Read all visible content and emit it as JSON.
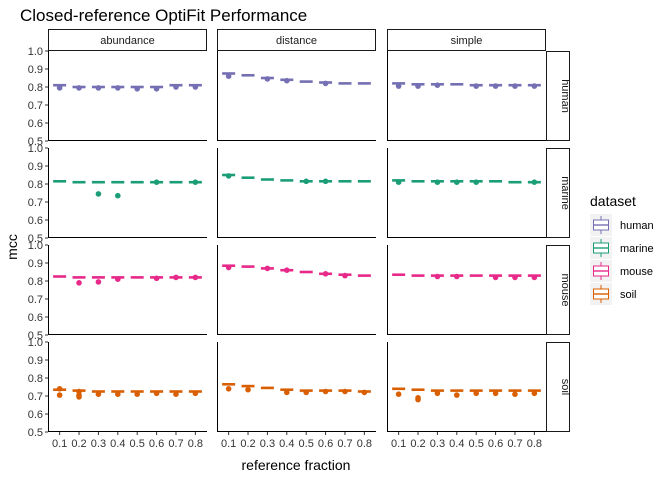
{
  "chart_data": {
    "type": "boxplot",
    "title": "Closed-reference OptiFit Performance",
    "xlabel": "reference fraction",
    "ylabel": "mcc",
    "x": [
      0.1,
      0.2,
      0.3,
      0.4,
      0.5,
      0.6,
      0.7,
      0.8
    ],
    "x_tick_labels": [
      "0.1",
      "0.2",
      "0.3",
      "0.4",
      "0.5",
      "0.6",
      "0.7",
      "0.8"
    ],
    "ylim": [
      0.5,
      1.0
    ],
    "y_ticks": [
      0.5,
      0.6,
      0.7,
      0.8,
      0.9,
      1.0
    ],
    "y_tick_labels": [
      "0.5",
      "0.6",
      "0.7",
      "0.8",
      "0.9",
      "1.0"
    ],
    "grid": false,
    "facet_columns": [
      "abundance",
      "distance",
      "simple"
    ],
    "facet_rows": [
      "human",
      "marine",
      "mouse",
      "soil"
    ],
    "legend": {
      "title": "dataset",
      "position": "right",
      "entries": [
        "human",
        "marine",
        "mouse",
        "soil"
      ]
    },
    "colors": {
      "human": "#7570b3",
      "marine": "#1b9e77",
      "mouse": "#e7298a",
      "soil": "#d95f02"
    },
    "panels": [
      {
        "row": "human",
        "col": "abundance",
        "medians": [
          0.81,
          0.8,
          0.8,
          0.8,
          0.8,
          0.8,
          0.81,
          0.81
        ],
        "outliers": [
          [
            0.1,
            0.795
          ],
          [
            0.2,
            0.795
          ],
          [
            0.3,
            0.795
          ],
          [
            0.4,
            0.795
          ],
          [
            0.5,
            0.79
          ],
          [
            0.6,
            0.79
          ],
          [
            0.7,
            0.8
          ],
          [
            0.8,
            0.8
          ]
        ]
      },
      {
        "row": "human",
        "col": "distance",
        "medians": [
          0.875,
          0.865,
          0.85,
          0.84,
          0.83,
          0.825,
          0.82,
          0.82
        ],
        "outliers": [
          [
            0.1,
            0.86
          ],
          [
            0.3,
            0.845
          ],
          [
            0.4,
            0.835
          ],
          [
            0.6,
            0.82
          ]
        ]
      },
      {
        "row": "human",
        "col": "simple",
        "medians": [
          0.82,
          0.815,
          0.815,
          0.815,
          0.81,
          0.81,
          0.81,
          0.81
        ],
        "outliers": [
          [
            0.1,
            0.805
          ],
          [
            0.2,
            0.805
          ],
          [
            0.3,
            0.81
          ],
          [
            0.5,
            0.805
          ],
          [
            0.6,
            0.805
          ],
          [
            0.7,
            0.805
          ],
          [
            0.8,
            0.805
          ]
        ]
      },
      {
        "row": "marine",
        "col": "abundance",
        "medians": [
          0.815,
          0.81,
          0.81,
          0.81,
          0.81,
          0.81,
          0.81,
          0.81
        ],
        "outliers": [
          [
            0.3,
            0.745
          ],
          [
            0.4,
            0.735
          ],
          [
            0.6,
            0.81
          ],
          [
            0.8,
            0.81
          ]
        ]
      },
      {
        "row": "marine",
        "col": "distance",
        "medians": [
          0.85,
          0.835,
          0.825,
          0.82,
          0.815,
          0.815,
          0.815,
          0.815
        ],
        "outliers": [
          [
            0.1,
            0.845
          ],
          [
            0.5,
            0.815
          ],
          [
            0.6,
            0.815
          ]
        ]
      },
      {
        "row": "marine",
        "col": "simple",
        "medians": [
          0.82,
          0.815,
          0.815,
          0.815,
          0.815,
          0.815,
          0.81,
          0.81
        ],
        "outliers": [
          [
            0.1,
            0.81
          ],
          [
            0.3,
            0.81
          ],
          [
            0.4,
            0.81
          ],
          [
            0.5,
            0.81
          ],
          [
            0.8,
            0.81
          ]
        ]
      },
      {
        "row": "mouse",
        "col": "abundance",
        "medians": [
          0.825,
          0.82,
          0.82,
          0.82,
          0.82,
          0.82,
          0.82,
          0.82
        ],
        "outliers": [
          [
            0.2,
            0.79
          ],
          [
            0.3,
            0.795
          ],
          [
            0.4,
            0.81
          ],
          [
            0.6,
            0.815
          ],
          [
            0.7,
            0.82
          ],
          [
            0.8,
            0.82
          ]
        ]
      },
      {
        "row": "mouse",
        "col": "distance",
        "medians": [
          0.885,
          0.88,
          0.87,
          0.86,
          0.85,
          0.84,
          0.835,
          0.83
        ],
        "outliers": [
          [
            0.1,
            0.875
          ],
          [
            0.3,
            0.87
          ],
          [
            0.4,
            0.86
          ],
          [
            0.6,
            0.84
          ],
          [
            0.7,
            0.83
          ]
        ]
      },
      {
        "row": "mouse",
        "col": "simple",
        "medians": [
          0.835,
          0.83,
          0.83,
          0.83,
          0.83,
          0.83,
          0.83,
          0.83
        ],
        "outliers": [
          [
            0.3,
            0.825
          ],
          [
            0.4,
            0.825
          ],
          [
            0.6,
            0.82
          ],
          [
            0.7,
            0.82
          ],
          [
            0.8,
            0.82
          ]
        ]
      },
      {
        "row": "soil",
        "col": "abundance",
        "medians": [
          0.735,
          0.73,
          0.725,
          0.725,
          0.725,
          0.725,
          0.725,
          0.725
        ],
        "outliers": [
          [
            0.1,
            0.74
          ],
          [
            0.1,
            0.705
          ],
          [
            0.2,
            0.725
          ],
          [
            0.2,
            0.705
          ],
          [
            0.2,
            0.695
          ],
          [
            0.3,
            0.71
          ],
          [
            0.4,
            0.71
          ],
          [
            0.5,
            0.71
          ],
          [
            0.6,
            0.715
          ],
          [
            0.7,
            0.71
          ],
          [
            0.8,
            0.715
          ]
        ]
      },
      {
        "row": "soil",
        "col": "distance",
        "medians": [
          0.765,
          0.755,
          0.745,
          0.735,
          0.73,
          0.73,
          0.73,
          0.725
        ],
        "outliers": [
          [
            0.1,
            0.74
          ],
          [
            0.2,
            0.735
          ],
          [
            0.4,
            0.72
          ],
          [
            0.5,
            0.72
          ],
          [
            0.6,
            0.725
          ],
          [
            0.7,
            0.725
          ],
          [
            0.8,
            0.72
          ]
        ]
      },
      {
        "row": "soil",
        "col": "simple",
        "medians": [
          0.74,
          0.735,
          0.73,
          0.73,
          0.73,
          0.73,
          0.73,
          0.73
        ],
        "outliers": [
          [
            0.1,
            0.71
          ],
          [
            0.2,
            0.69
          ],
          [
            0.2,
            0.68
          ],
          [
            0.3,
            0.715
          ],
          [
            0.4,
            0.705
          ],
          [
            0.5,
            0.715
          ],
          [
            0.6,
            0.715
          ],
          [
            0.7,
            0.71
          ],
          [
            0.8,
            0.715
          ]
        ]
      }
    ]
  }
}
